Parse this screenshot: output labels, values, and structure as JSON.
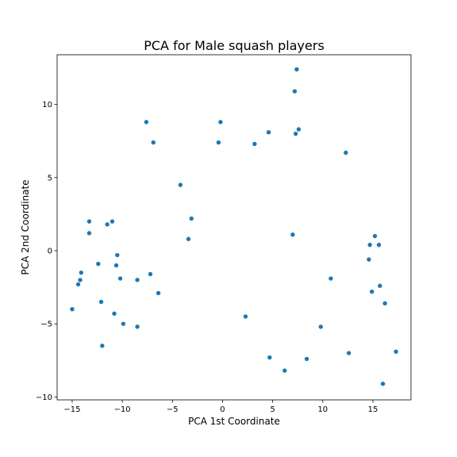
{
  "chart_data": {
    "type": "scatter",
    "title": "PCA for Male squash players",
    "xlabel": "PCA 1st Coordinate",
    "ylabel": "PCA 2nd Coordinate",
    "xlim": [
      -16.5,
      18.8
    ],
    "ylim": [
      -10.2,
      13.4
    ],
    "xticks": [
      -15,
      -10,
      -5,
      0,
      5,
      10,
      15
    ],
    "yticks": [
      -10,
      -5,
      0,
      5,
      10
    ],
    "grid": false,
    "legend": "none",
    "marker_color": "#1f77b4",
    "series": [
      {
        "x": [
          -15.0,
          -14.4,
          -14.2,
          -14.1,
          -13.3,
          -13.3,
          -12.4,
          -12.1,
          -12.0,
          -11.5,
          -11.0,
          -10.8,
          -10.6,
          -10.5,
          -10.2,
          -9.9,
          -8.5,
          -8.5,
          -7.6,
          -7.2,
          -6.9,
          -6.4,
          -4.2,
          -3.4,
          -3.1,
          -0.4,
          -0.2,
          2.3,
          3.2,
          4.6,
          4.7,
          6.2,
          7.0,
          7.2,
          7.3,
          7.4,
          7.6,
          8.4,
          9.8,
          10.8,
          12.3,
          12.6,
          14.6,
          14.7,
          14.9,
          15.2,
          15.6,
          15.7,
          16.0,
          16.2,
          17.3
        ],
        "y": [
          -4.0,
          -2.3,
          -2.0,
          -1.5,
          2.0,
          1.2,
          -0.9,
          -3.5,
          -6.5,
          1.8,
          2.0,
          -4.3,
          -1.0,
          -0.3,
          -1.9,
          -5.0,
          -2.0,
          -5.2,
          8.8,
          -1.6,
          7.4,
          -2.9,
          4.5,
          0.8,
          2.2,
          7.4,
          8.8,
          -4.5,
          7.3,
          8.1,
          -7.3,
          -8.2,
          1.1,
          10.9,
          8.0,
          12.4,
          8.3,
          -7.4,
          -5.2,
          -1.9,
          6.7,
          -7.0,
          -0.6,
          0.4,
          -2.8,
          1.0,
          0.4,
          -2.4,
          -9.1,
          -3.6,
          -6.9
        ]
      }
    ]
  }
}
